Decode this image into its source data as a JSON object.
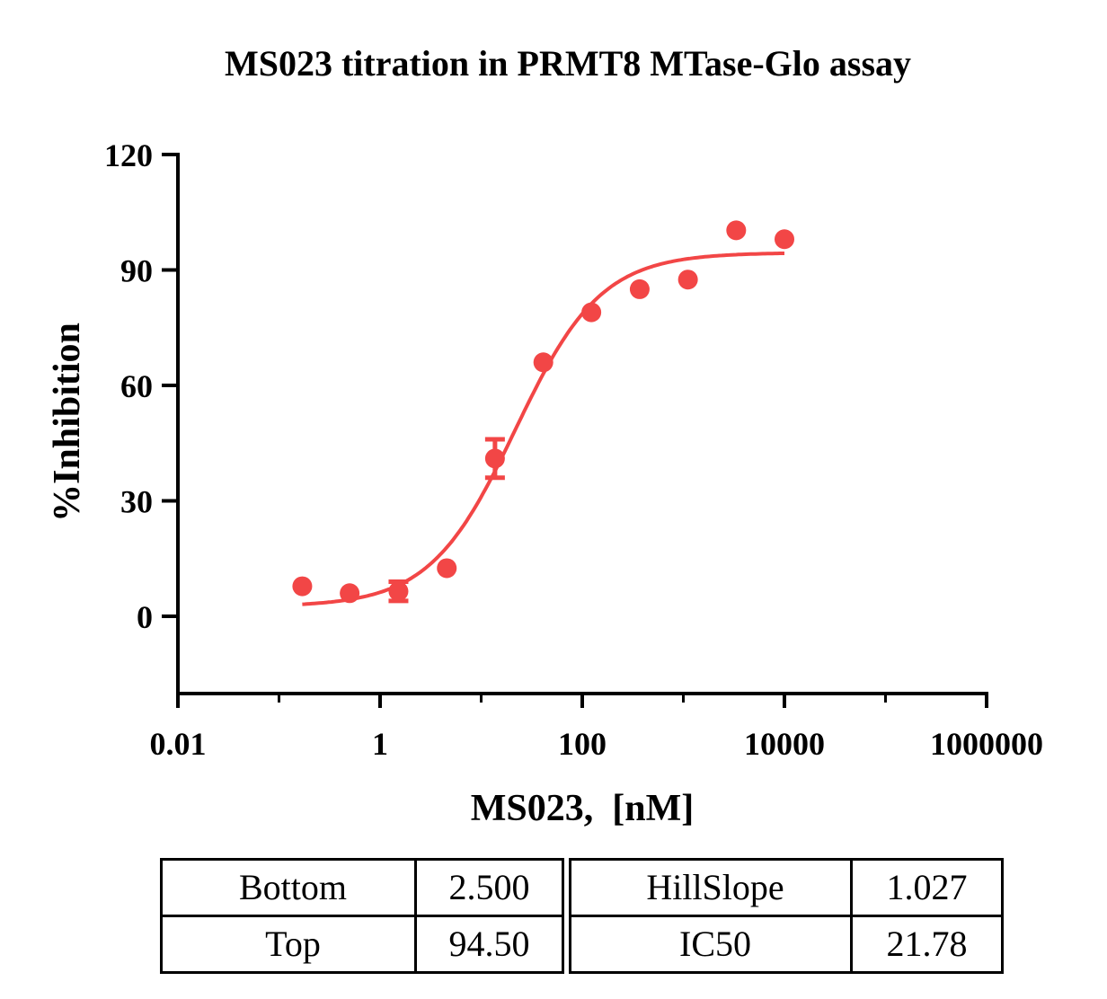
{
  "chart_data": {
    "type": "scatter",
    "title": "MS023 titration in PRMT8 MTase-Glo assay",
    "xlabel": "MS023,  [nM]",
    "ylabel": "%Inhibition",
    "xscale": "log",
    "xlim": [
      0.01,
      1000000
    ],
    "ylim": [
      -20,
      120
    ],
    "xticks": [
      "0.01",
      "1",
      "100",
      "10000",
      "1000000"
    ],
    "xtick_values": [
      0.01,
      1,
      100,
      10000,
      1000000
    ],
    "yticks": [
      "0",
      "30",
      "60",
      "90",
      "120"
    ],
    "ytick_values": [
      0,
      30,
      60,
      90,
      120
    ],
    "color": "#f24646",
    "series": [
      {
        "points": [
          {
            "x": 0.17,
            "y": 7.8
          },
          {
            "x": 0.5,
            "y": 6.0
          },
          {
            "x": 1.52,
            "y": 6.5,
            "err": 2.5
          },
          {
            "x": 4.57,
            "y": 12.5
          },
          {
            "x": 13.7,
            "y": 41.0,
            "err": 5.0
          },
          {
            "x": 41.2,
            "y": 66.0
          },
          {
            "x": 123,
            "y": 79.0
          },
          {
            "x": 370,
            "y": 85.0
          },
          {
            "x": 1111,
            "y": 87.5
          },
          {
            "x": 3333,
            "y": 100.3
          },
          {
            "x": 10000,
            "y": 98.0
          }
        ]
      }
    ],
    "fit": {
      "bottom": 2.5,
      "top": 94.5,
      "hillslope": 1.027,
      "ic50": 21.78
    }
  },
  "params": {
    "left": [
      {
        "name": "Bottom",
        "value": "2.500"
      },
      {
        "name": "Top",
        "value": "94.50"
      }
    ],
    "right": [
      {
        "name": "HillSlope",
        "value": "1.027"
      },
      {
        "name": "IC50",
        "value": "21.78"
      }
    ]
  }
}
